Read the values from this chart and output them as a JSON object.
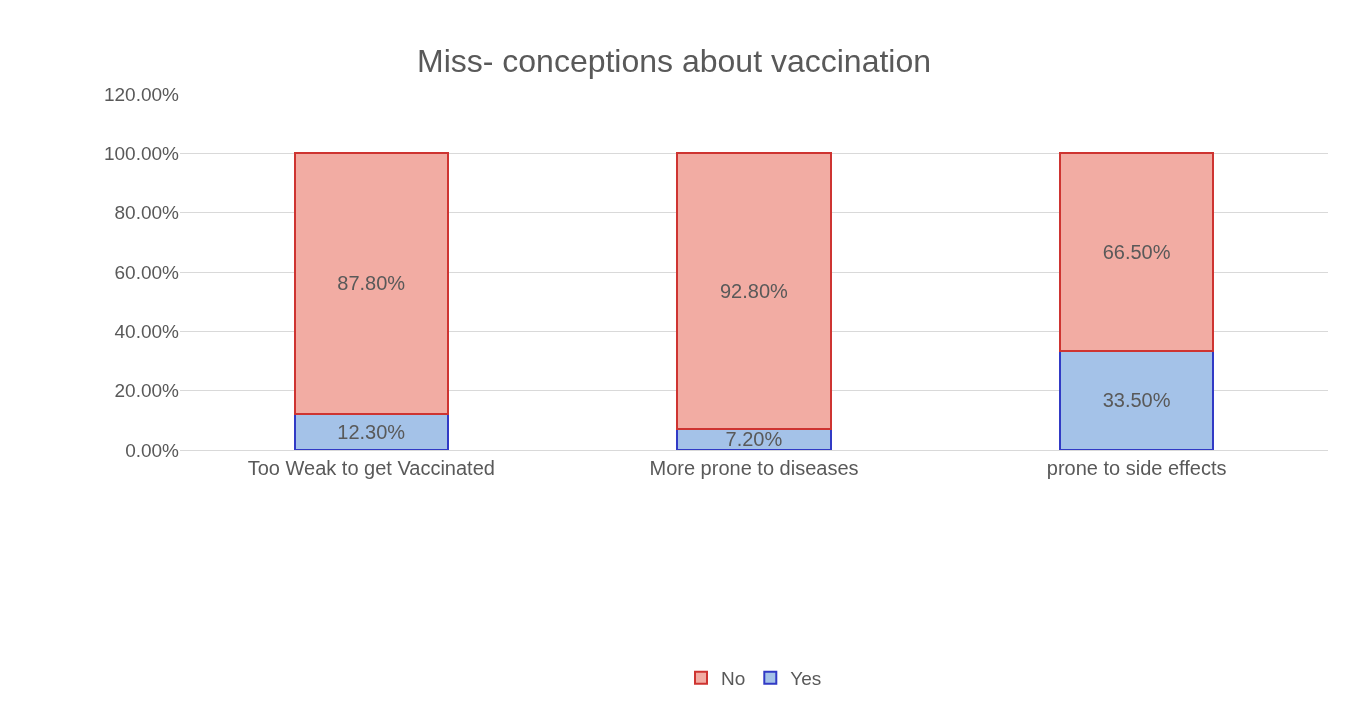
{
  "chart_data": {
    "type": "bar",
    "title": "Miss- conceptions about vaccination",
    "categories": [
      "Too Weak to get Vaccinated",
      "More prone to diseases",
      "prone to side effects"
    ],
    "stacked": true,
    "series": [
      {
        "name": "Yes",
        "color": "#a4c2e8",
        "values": [
          12.3,
          7.2,
          33.5
        ],
        "value_labels": [
          "12.30%",
          "7.20%",
          "33.50%"
        ]
      },
      {
        "name": "No",
        "color": "#f2aca3",
        "values": [
          87.8,
          92.8,
          66.5
        ],
        "value_labels": [
          "87.80%",
          "92.80%",
          "66.50%"
        ]
      }
    ],
    "ylim": [
      0,
      120
    ],
    "yticks": [
      {
        "value": 0,
        "label": "0.00%"
      },
      {
        "value": 20,
        "label": "20.00%"
      },
      {
        "value": 40,
        "label": "40.00%"
      },
      {
        "value": 60,
        "label": "60.00%"
      },
      {
        "value": 80,
        "label": "80.00%"
      },
      {
        "value": 100,
        "label": "100.00%"
      },
      {
        "value": 120,
        "label": "120.00%"
      }
    ],
    "grid": "y",
    "legend": "bottom"
  }
}
